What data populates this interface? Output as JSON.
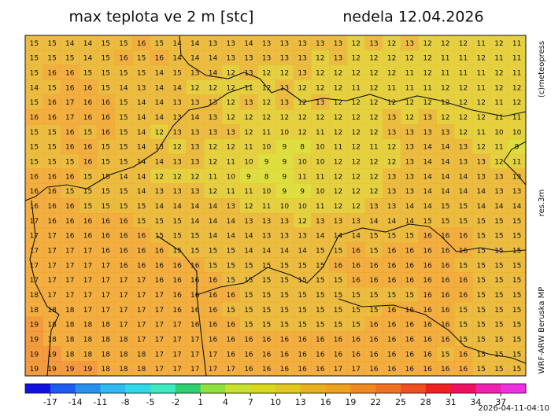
{
  "header": {
    "title": "max teplota ve 2 m [stc]",
    "date": "nedela 12.04.2026"
  },
  "side_labels": {
    "copyright": "(c)meteopress",
    "resolution": "res.3m",
    "model": "WRF-ARW Beruska MP"
  },
  "footer": {
    "timestamp": "2026-04-11-04:10"
  },
  "colorbar": {
    "lim": [
      -20,
      40
    ],
    "ticks": [
      -17,
      -14,
      -11,
      -8,
      -5,
      -2,
      1,
      4,
      7,
      10,
      13,
      16,
      19,
      22,
      25,
      28,
      31,
      34,
      37
    ],
    "colors": [
      "#1010e0",
      "#1e5af0",
      "#2a90f0",
      "#30b8f0",
      "#30d8e8",
      "#40e8c0",
      "#30d070",
      "#90e040",
      "#c8e030",
      "#d8d820",
      "#e0c820",
      "#e8b020",
      "#f0a020",
      "#f08a20",
      "#f07020",
      "#f05020",
      "#f02020",
      "#f01060",
      "#f020b0",
      "#f030e0"
    ]
  },
  "grid": [
    [
      15,
      15,
      14,
      14,
      15,
      15,
      16,
      15,
      14,
      14,
      13,
      13,
      14,
      13,
      13,
      13,
      13,
      13,
      12,
      13,
      12,
      13,
      12,
      12,
      12,
      11,
      12,
      11
    ],
    [
      15,
      15,
      15,
      14,
      15,
      16,
      15,
      16,
      14,
      14,
      14,
      13,
      13,
      13,
      13,
      13,
      12,
      13,
      12,
      12,
      12,
      12,
      12,
      11,
      11,
      12,
      11,
      11
    ],
    [
      15,
      16,
      16,
      15,
      15,
      15,
      15,
      14,
      15,
      13,
      14,
      12,
      13,
      12,
      12,
      13,
      12,
      12,
      12,
      12,
      12,
      11,
      12,
      11,
      11,
      11,
      12,
      11
    ],
    [
      14,
      15,
      16,
      16,
      15,
      14,
      13,
      14,
      14,
      12,
      12,
      12,
      11,
      12,
      13,
      12,
      12,
      12,
      11,
      12,
      11,
      11,
      11,
      12,
      12,
      11,
      12,
      12
    ],
    [
      15,
      16,
      17,
      16,
      16,
      15,
      14,
      14,
      13,
      13,
      13,
      12,
      13,
      12,
      13,
      12,
      13,
      12,
      12,
      12,
      12,
      12,
      12,
      12,
      12,
      12,
      11,
      12
    ],
    [
      16,
      16,
      17,
      16,
      16,
      15,
      14,
      14,
      13,
      14,
      13,
      12,
      12,
      12,
      12,
      12,
      12,
      12,
      12,
      12,
      13,
      12,
      13,
      12,
      12,
      12,
      11,
      11
    ],
    [
      15,
      15,
      16,
      15,
      16,
      15,
      14,
      12,
      13,
      13,
      13,
      13,
      12,
      11,
      10,
      12,
      11,
      12,
      12,
      12,
      13,
      13,
      13,
      13,
      12,
      11,
      10,
      10
    ],
    [
      15,
      15,
      16,
      16,
      15,
      15,
      14,
      13,
      12,
      13,
      12,
      12,
      11,
      10,
      9,
      8,
      10,
      11,
      12,
      11,
      12,
      13,
      14,
      14,
      13,
      12,
      11,
      9
    ],
    [
      15,
      15,
      15,
      16,
      15,
      15,
      14,
      14,
      13,
      13,
      12,
      11,
      10,
      9,
      9,
      10,
      10,
      12,
      12,
      12,
      12,
      13,
      14,
      14,
      13,
      13,
      12,
      11
    ],
    [
      16,
      16,
      16,
      15,
      15,
      14,
      14,
      12,
      12,
      12,
      11,
      10,
      9,
      8,
      9,
      11,
      11,
      12,
      12,
      12,
      13,
      13,
      14,
      14,
      14,
      13,
      13,
      13
    ],
    [
      16,
      16,
      15,
      15,
      15,
      15,
      14,
      13,
      13,
      13,
      12,
      11,
      11,
      10,
      9,
      9,
      10,
      12,
      12,
      12,
      13,
      13,
      14,
      14,
      14,
      14,
      13,
      13
    ],
    [
      16,
      16,
      16,
      15,
      15,
      15,
      15,
      14,
      14,
      14,
      14,
      13,
      12,
      11,
      10,
      10,
      11,
      12,
      12,
      13,
      13,
      14,
      14,
      15,
      15,
      14,
      14,
      14
    ],
    [
      17,
      16,
      16,
      16,
      16,
      16,
      15,
      15,
      15,
      14,
      14,
      14,
      13,
      13,
      13,
      12,
      13,
      13,
      13,
      14,
      14,
      14,
      15,
      15,
      15,
      15,
      15,
      15
    ],
    [
      17,
      17,
      16,
      16,
      16,
      16,
      16,
      15,
      15,
      15,
      14,
      14,
      14,
      13,
      13,
      13,
      14,
      14,
      14,
      15,
      15,
      15,
      16,
      16,
      16,
      15,
      15,
      15
    ],
    [
      17,
      17,
      17,
      17,
      16,
      16,
      16,
      16,
      15,
      15,
      15,
      15,
      14,
      14,
      14,
      14,
      15,
      15,
      16,
      15,
      16,
      16,
      16,
      16,
      16,
      15,
      15,
      15
    ],
    [
      17,
      17,
      17,
      17,
      17,
      16,
      16,
      16,
      16,
      16,
      15,
      15,
      15,
      15,
      15,
      15,
      15,
      16,
      16,
      16,
      16,
      16,
      16,
      16,
      15,
      15,
      15,
      15
    ],
    [
      17,
      17,
      17,
      17,
      17,
      17,
      17,
      16,
      16,
      16,
      16,
      15,
      15,
      15,
      15,
      15,
      15,
      15,
      16,
      16,
      16,
      16,
      16,
      16,
      16,
      15,
      15,
      15
    ],
    [
      18,
      17,
      17,
      17,
      17,
      17,
      17,
      17,
      16,
      16,
      16,
      16,
      15,
      15,
      15,
      15,
      15,
      15,
      15,
      15,
      15,
      15,
      16,
      16,
      16,
      15,
      15,
      15
    ],
    [
      18,
      18,
      18,
      17,
      17,
      17,
      17,
      17,
      16,
      16,
      16,
      15,
      15,
      15,
      15,
      15,
      15,
      15,
      15,
      15,
      16,
      16,
      16,
      16,
      15,
      15,
      15,
      15
    ],
    [
      19,
      18,
      18,
      18,
      18,
      17,
      17,
      17,
      17,
      16,
      16,
      16,
      15,
      15,
      15,
      15,
      15,
      15,
      15,
      16,
      16,
      16,
      16,
      16,
      15,
      15,
      15,
      15
    ],
    [
      19,
      18,
      18,
      18,
      18,
      18,
      17,
      17,
      17,
      17,
      16,
      16,
      16,
      16,
      16,
      16,
      16,
      16,
      16,
      16,
      16,
      16,
      16,
      16,
      15,
      15,
      15,
      15
    ],
    [
      19,
      19,
      18,
      18,
      18,
      18,
      18,
      17,
      17,
      17,
      17,
      16,
      16,
      16,
      16,
      16,
      16,
      16,
      16,
      16,
      16,
      16,
      16,
      15,
      16,
      15,
      15,
      15
    ],
    [
      19,
      19,
      19,
      19,
      18,
      18,
      18,
      17,
      17,
      17,
      17,
      17,
      16,
      16,
      16,
      16,
      16,
      17,
      17,
      16,
      16,
      16,
      16,
      16,
      16,
      15,
      15,
      15
    ]
  ]
}
